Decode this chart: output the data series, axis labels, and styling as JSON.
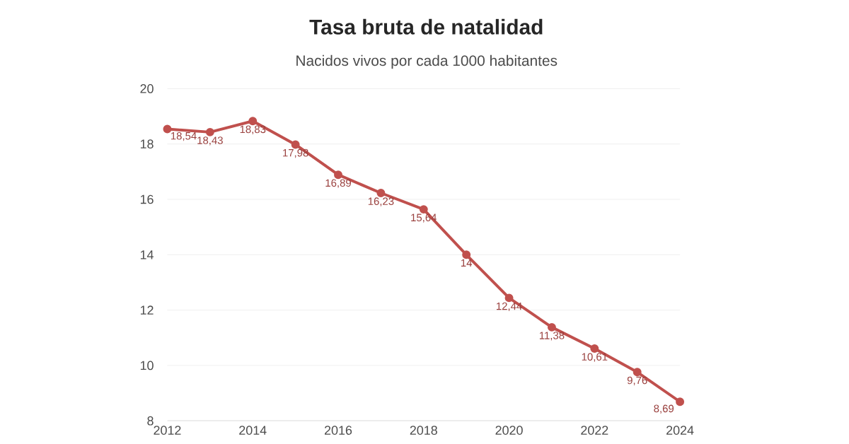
{
  "chart_data": {
    "type": "line",
    "title": "Tasa bruta de natalidad",
    "subtitle": "Nacidos vivos por cada 1000 habitantes",
    "x": [
      2012,
      2013,
      2014,
      2015,
      2016,
      2017,
      2018,
      2019,
      2020,
      2021,
      2022,
      2023,
      2024
    ],
    "series": [
      {
        "color": "#c0504d",
        "values": [
          18.54,
          18.43,
          18.83,
          17.98,
          16.89,
          16.23,
          15.64,
          14,
          12.44,
          11.38,
          10.61,
          9.76,
          8.69
        ],
        "value_labels": [
          "18,54",
          "18,43",
          "18,83",
          "17,98",
          "16,89",
          "16,23",
          "15,64",
          "14",
          "12,44",
          "11,38",
          "10,61",
          "9,76",
          "8,69"
        ]
      }
    ],
    "xlim": [
      2012,
      2024
    ],
    "xticks": [
      2012,
      2014,
      2016,
      2018,
      2020,
      2022,
      2024
    ],
    "ylim": [
      8,
      20
    ],
    "yticks": [
      8,
      10,
      12,
      14,
      16,
      18,
      20
    ],
    "grid": "y",
    "marker": "circle",
    "line_style": "solid"
  }
}
